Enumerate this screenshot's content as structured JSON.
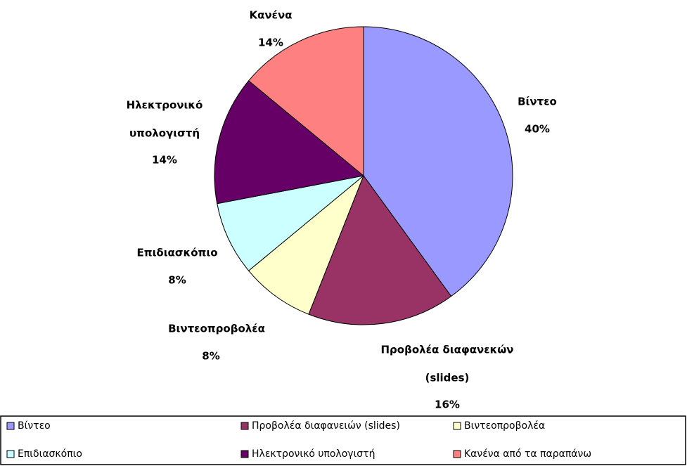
{
  "chart_data": {
    "type": "pie",
    "categories": [
      "Βίντεο",
      "Προβολέα διαφανειών (slides)",
      "Βιντεοπροβολέα",
      "Επιδιασκόπιο",
      "Ηλεκτρονικό υπολογιστή",
      "Κανένα από τα παραπάνω"
    ],
    "slice_labels": [
      [
        "Βίντεο"
      ],
      [
        "Προβολέα διαφανεκών",
        "(slides)"
      ],
      [
        "Βιντεοπροβολέα"
      ],
      [
        "Επιδιασκόπιο"
      ],
      [
        "Ηλεκτρονικό",
        "υπολογιστή"
      ],
      [
        "Κανένα"
      ]
    ],
    "values": [
      40,
      16,
      8,
      8,
      14,
      14
    ],
    "value_labels": [
      "40%",
      "16%",
      "8%",
      "8%",
      "14%",
      "14%"
    ],
    "colors": [
      "#9999ff",
      "#993366",
      "#ffffcc",
      "#ccffff",
      "#660066",
      "#ff8080"
    ],
    "legend": "bottom"
  }
}
